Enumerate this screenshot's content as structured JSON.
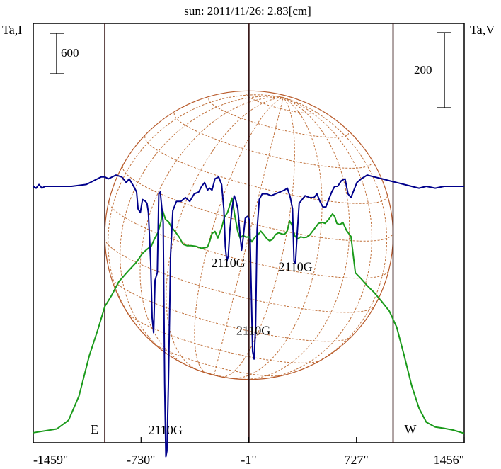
{
  "chart_data": {
    "type": "line",
    "title": "sun: 2011/11/26: 2.83[cm]",
    "left_axis_label": "Ta,I",
    "right_axis_label": "Ta,V",
    "x_tick_labels": [
      "-1459\"",
      "-730\"",
      "-1\"",
      "727\"",
      "1456\""
    ],
    "x_ticks": [
      -1459,
      -730,
      -1,
      727,
      1456
    ],
    "xlim": [
      -1459,
      1456
    ],
    "scale_bar_I": {
      "label": "600",
      "value": 600
    },
    "scale_bar_V": {
      "label": "200",
      "value": 200
    },
    "limb_markers": [
      {
        "label": "E",
        "x": -975
      },
      {
        "label": "W",
        "x": 975
      }
    ],
    "center_marker_x": 0,
    "disk_radius_arcsec": 975,
    "annotations": [
      {
        "text": "2110G",
        "x": -565,
        "y_V": -660
      },
      {
        "text": "2110G",
        "x": -140,
        "y_V": -215
      },
      {
        "text": "2110G",
        "x": 30,
        "y_V": -395
      },
      {
        "text": "2110G",
        "x": 315,
        "y_V": -225
      }
    ],
    "series": [
      {
        "color": "#1a9a1a",
        "axis": "I",
        "points": [
          [
            -1459,
            55
          ],
          [
            -1300,
            110
          ],
          [
            -1220,
            240
          ],
          [
            -1150,
            600
          ],
          [
            -1080,
            1200
          ],
          [
            -1020,
            1600
          ],
          [
            -975,
            1930
          ],
          [
            -930,
            2090
          ],
          [
            -880,
            2300
          ],
          [
            -820,
            2450
          ],
          [
            -760,
            2590
          ],
          [
            -720,
            2720
          ],
          [
            -690,
            2780
          ],
          [
            -660,
            2830
          ],
          [
            -640,
            2930
          ],
          [
            -615,
            3030
          ],
          [
            -595,
            3190
          ],
          [
            -585,
            3365
          ],
          [
            -565,
            3225
          ],
          [
            -545,
            3190
          ],
          [
            -525,
            3115
          ],
          [
            -500,
            3045
          ],
          [
            -470,
            2955
          ],
          [
            -445,
            2855
          ],
          [
            -420,
            2835
          ],
          [
            -390,
            2835
          ],
          [
            -360,
            2825
          ],
          [
            -320,
            2795
          ],
          [
            -280,
            2815
          ],
          [
            -265,
            2900
          ],
          [
            -250,
            3015
          ],
          [
            -230,
            3045
          ],
          [
            -210,
            2950
          ],
          [
            -185,
            3100
          ],
          [
            -165,
            3260
          ],
          [
            -145,
            3325
          ],
          [
            -130,
            3435
          ],
          [
            -115,
            3540
          ],
          [
            -95,
            3270
          ],
          [
            -75,
            3040
          ],
          [
            -60,
            2950
          ],
          [
            -40,
            2985
          ],
          [
            -20,
            2960
          ],
          [
            0,
            2965
          ],
          [
            20,
            2890
          ],
          [
            40,
            2960
          ],
          [
            60,
            2990
          ],
          [
            80,
            3050
          ],
          [
            100,
            3000
          ],
          [
            120,
            2940
          ],
          [
            140,
            2905
          ],
          [
            160,
            2930
          ],
          [
            180,
            3000
          ],
          [
            200,
            3025
          ],
          [
            220,
            3010
          ],
          [
            240,
            3000
          ],
          [
            260,
            3060
          ],
          [
            275,
            3200
          ],
          [
            290,
            3145
          ],
          [
            310,
            2980
          ],
          [
            330,
            2935
          ],
          [
            350,
            2965
          ],
          [
            370,
            2955
          ],
          [
            390,
            2960
          ],
          [
            410,
            2990
          ],
          [
            440,
            3075
          ],
          [
            470,
            3165
          ],
          [
            495,
            3180
          ],
          [
            515,
            3165
          ],
          [
            540,
            3225
          ],
          [
            565,
            3305
          ],
          [
            580,
            3265
          ],
          [
            595,
            3165
          ],
          [
            615,
            3145
          ],
          [
            635,
            3180
          ],
          [
            660,
            3060
          ],
          [
            690,
            2970
          ],
          [
            720,
            2430
          ],
          [
            760,
            2340
          ],
          [
            800,
            2240
          ],
          [
            850,
            2130
          ],
          [
            900,
            2000
          ],
          [
            950,
            1860
          ],
          [
            1000,
            1620
          ],
          [
            1050,
            1200
          ],
          [
            1100,
            760
          ],
          [
            1150,
            420
          ],
          [
            1200,
            210
          ],
          [
            1260,
            140
          ],
          [
            1320,
            120
          ],
          [
            1380,
            95
          ],
          [
            1456,
            45
          ]
        ]
      },
      {
        "color": "#00008b",
        "axis": "V",
        "points": [
          [
            -1459,
            0
          ],
          [
            -1440,
            -5
          ],
          [
            -1420,
            5
          ],
          [
            -1400,
            -5
          ],
          [
            -1380,
            0
          ],
          [
            -1340,
            0
          ],
          [
            -1200,
            0
          ],
          [
            -1100,
            5
          ],
          [
            -1050,
            15
          ],
          [
            -1000,
            25
          ],
          [
            -975,
            25
          ],
          [
            -950,
            20
          ],
          [
            -900,
            30
          ],
          [
            -860,
            25
          ],
          [
            -830,
            10
          ],
          [
            -810,
            20
          ],
          [
            -780,
            0
          ],
          [
            -760,
            -15
          ],
          [
            -750,
            -60
          ],
          [
            -735,
            -70
          ],
          [
            -720,
            -35
          ],
          [
            -700,
            -40
          ],
          [
            -690,
            -45
          ],
          [
            -680,
            -70
          ],
          [
            -665,
            -200
          ],
          [
            -655,
            -350
          ],
          [
            -645,
            -390
          ],
          [
            -635,
            -250
          ],
          [
            -620,
            -230
          ],
          [
            -610,
            -20
          ],
          [
            -600,
            -15
          ],
          [
            -580,
            -95
          ],
          [
            -570,
            -525
          ],
          [
            -562,
            -720
          ],
          [
            -555,
            -705
          ],
          [
            -545,
            -525
          ],
          [
            -530,
            -180
          ],
          [
            -515,
            -65
          ],
          [
            -490,
            -40
          ],
          [
            -460,
            -40
          ],
          [
            -430,
            -30
          ],
          [
            -400,
            -40
          ],
          [
            -370,
            -20
          ],
          [
            -340,
            -15
          ],
          [
            -320,
            0
          ],
          [
            -300,
            10
          ],
          [
            -280,
            -10
          ],
          [
            -265,
            -5
          ],
          [
            -250,
            -10
          ],
          [
            -230,
            20
          ],
          [
            -205,
            25
          ],
          [
            -185,
            5
          ],
          [
            -170,
            -60
          ],
          [
            -160,
            -160
          ],
          [
            -150,
            -200
          ],
          [
            -140,
            -185
          ],
          [
            -130,
            -120
          ],
          [
            -115,
            -60
          ],
          [
            -100,
            -25
          ],
          [
            -90,
            -35
          ],
          [
            -75,
            -60
          ],
          [
            -60,
            -130
          ],
          [
            -50,
            -170
          ],
          [
            -40,
            -140
          ],
          [
            -25,
            -85
          ],
          [
            -10,
            -80
          ],
          [
            5,
            -90
          ],
          [
            15,
            -260
          ],
          [
            25,
            -440
          ],
          [
            35,
            -460
          ],
          [
            45,
            -375
          ],
          [
            55,
            -115
          ],
          [
            70,
            -35
          ],
          [
            90,
            -20
          ],
          [
            120,
            -20
          ],
          [
            150,
            -25
          ],
          [
            180,
            -20
          ],
          [
            210,
            -15
          ],
          [
            240,
            -10
          ],
          [
            260,
            -5
          ],
          [
            280,
            -30
          ],
          [
            295,
            -60
          ],
          [
            305,
            -200
          ],
          [
            315,
            -205
          ],
          [
            325,
            -135
          ],
          [
            340,
            -45
          ],
          [
            360,
            -35
          ],
          [
            380,
            -25
          ],
          [
            410,
            -30
          ],
          [
            440,
            -30
          ],
          [
            460,
            -20
          ],
          [
            480,
            -40
          ],
          [
            500,
            -55
          ],
          [
            520,
            -55
          ],
          [
            540,
            -35
          ],
          [
            560,
            -15
          ],
          [
            580,
            0
          ],
          [
            600,
            0
          ],
          [
            625,
            15
          ],
          [
            650,
            20
          ],
          [
            670,
            -20
          ],
          [
            690,
            -30
          ],
          [
            710,
            -10
          ],
          [
            730,
            10
          ],
          [
            760,
            20
          ],
          [
            800,
            30
          ],
          [
            850,
            25
          ],
          [
            900,
            20
          ],
          [
            950,
            15
          ],
          [
            1000,
            10
          ],
          [
            1050,
            5
          ],
          [
            1100,
            0
          ],
          [
            1150,
            -5
          ],
          [
            1200,
            0
          ],
          [
            1260,
            -5
          ],
          [
            1320,
            0
          ],
          [
            1380,
            0
          ],
          [
            1456,
            0
          ]
        ]
      }
    ]
  }
}
